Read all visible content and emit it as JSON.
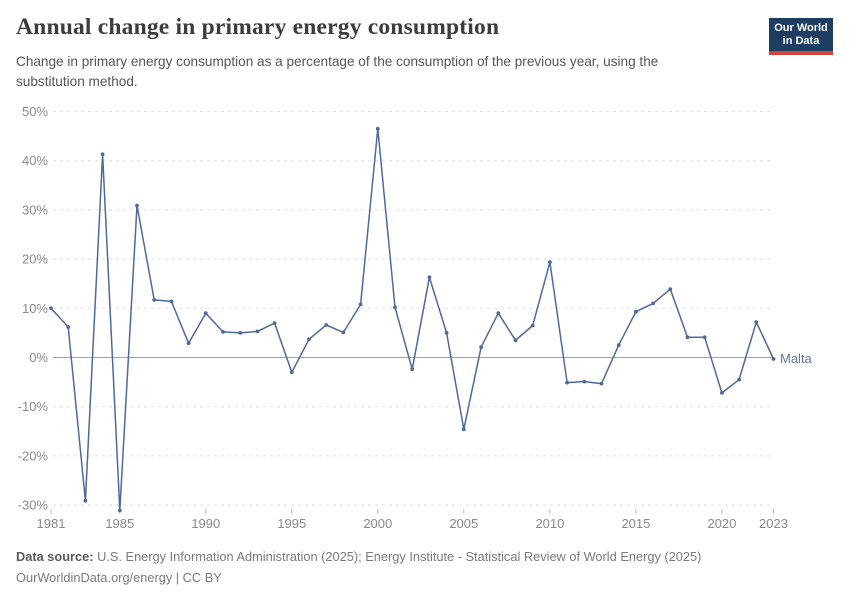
{
  "header": {
    "title": "Annual change in primary energy consumption",
    "subtitle": "Change in primary energy consumption as a percentage of the consumption of the previous year, using the substitution method.",
    "logo": {
      "line1": "Our World",
      "line2": "in Data",
      "bg_color": "#1d3d63",
      "accent_color": "#d0443a"
    }
  },
  "chart_data": {
    "type": "line",
    "title": "Annual change in primary energy consumption",
    "xlabel": "",
    "ylabel": "",
    "grid": "horizontal-dashed",
    "legend_position": "end-of-line-label",
    "ylim": [
      -31.5,
      50
    ],
    "x": [
      1981,
      1982,
      1983,
      1984,
      1985,
      1986,
      1987,
      1988,
      1989,
      1990,
      1991,
      1992,
      1993,
      1994,
      1995,
      1996,
      1997,
      1998,
      1999,
      2000,
      2001,
      2002,
      2003,
      2004,
      2005,
      2006,
      2007,
      2008,
      2009,
      2010,
      2011,
      2012,
      2013,
      2014,
      2015,
      2016,
      2017,
      2018,
      2019,
      2020,
      2021,
      2022,
      2023
    ],
    "series": [
      {
        "name": "Malta",
        "color": "#4C6A9C",
        "values": [
          10.0,
          6.2,
          -29.1,
          41.3,
          -31.1,
          30.9,
          11.7,
          11.4,
          2.9,
          9.0,
          5.2,
          5.0,
          5.3,
          7.0,
          -3.0,
          3.7,
          6.6,
          5.1,
          10.8,
          46.5,
          10.2,
          -2.4,
          16.3,
          5.0,
          -14.6,
          2.1,
          9.0,
          3.5,
          6.5,
          19.4,
          -5.1,
          -4.9,
          -5.3,
          2.5,
          9.3,
          11.0,
          13.9,
          4.1,
          4.1,
          -7.2,
          -4.5,
          7.2,
          -0.3
        ]
      }
    ],
    "yticks": {
      "values": [
        50,
        40,
        30,
        20,
        10,
        0,
        -10,
        -20,
        -30
      ],
      "labels": [
        "50%",
        "40%",
        "30%",
        "20%",
        "10%",
        "0%",
        "-10%",
        "-20%",
        "-30%"
      ]
    },
    "xticks": {
      "values": [
        1981,
        1985,
        1990,
        1995,
        2000,
        2005,
        2010,
        2015,
        2020,
        2023
      ],
      "labels": [
        "1981",
        "1985",
        "1990",
        "1995",
        "2000",
        "2005",
        "2010",
        "2015",
        "2020",
        "2023"
      ]
    },
    "colors": {
      "line": "#4C6A9C",
      "gridline": "#dedede",
      "zero_line": "#a3a3a3",
      "tick_label": "#8a8a8a",
      "entity_label": "#5e7697"
    }
  },
  "footer": {
    "source_label": "Data source:",
    "source_text": " U.S. Energy Information Administration (2025); Energy Institute - Statistical Review of World Energy (2025)",
    "link_text": "OurWorldinData.org/energy | CC BY"
  }
}
